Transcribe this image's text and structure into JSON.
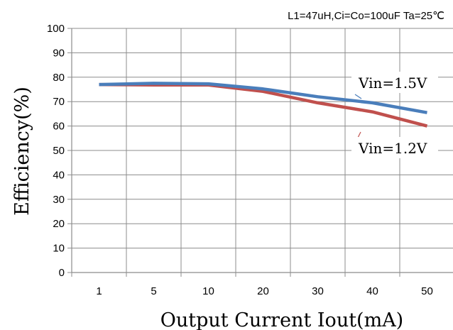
{
  "chart_data": {
    "type": "line",
    "title": "L1=47uH,Ci=Co=100uF Ta=25℃",
    "xlabel": "Output Current Iout(mA)",
    "ylabel": "Efficiency(%)",
    "categories": [
      "1",
      "5",
      "10",
      "20",
      "30",
      "40",
      "50"
    ],
    "yticks": [
      "0",
      "10",
      "20",
      "30",
      "40",
      "50",
      "60",
      "70",
      "80",
      "90",
      "100"
    ],
    "ylim": [
      0,
      100
    ],
    "grid": true,
    "series": [
      {
        "name": "Vin=1.5V",
        "color": "#4a7ebb",
        "values": [
          77,
          77.5,
          77.3,
          75.2,
          72,
          69.5,
          65.5
        ]
      },
      {
        "name": "Vin=1.2V",
        "color": "#c0504d",
        "values": [
          77,
          76.8,
          76.8,
          74.2,
          69.5,
          65.8,
          60
        ]
      }
    ]
  }
}
